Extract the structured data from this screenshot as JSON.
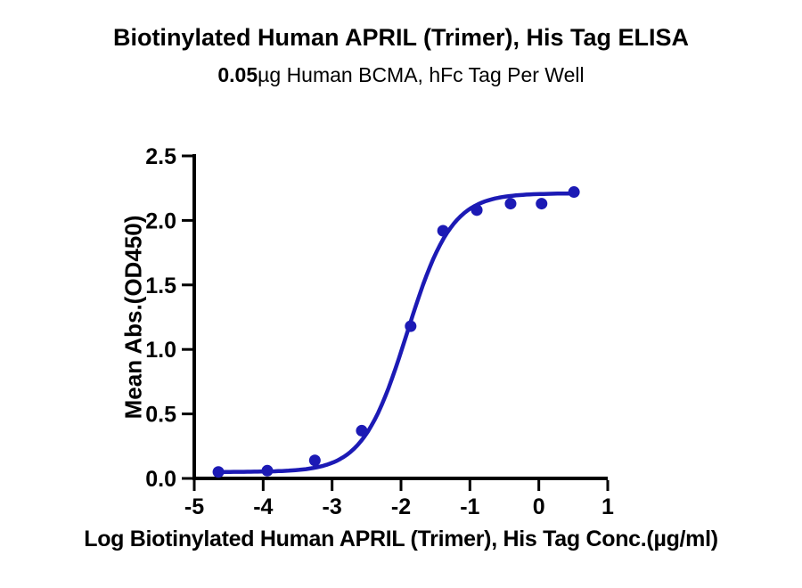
{
  "header": {
    "title": "Biotinylated Human APRIL (Trimer), His Tag ELISA",
    "subtitle_bold": "0.05",
    "subtitle_rest": "µg Human BCMA, hFc Tag Per Well"
  },
  "chart_data": {
    "type": "scatter",
    "title": "Biotinylated Human APRIL (Trimer), His Tag ELISA",
    "subtitle": "0.05µg Human BCMA, hFc Tag Per Well",
    "xlabel": "Log Biotinylated Human APRIL (Trimer), His Tag Conc.(µg/ml)",
    "ylabel": "Mean Abs.(OD450)",
    "xlim": [
      -5,
      1
    ],
    "ylim": [
      0,
      2.5
    ],
    "x_ticks": [
      -5,
      -4,
      -3,
      -2,
      -1,
      0,
      1
    ],
    "x_tick_labels": [
      "-5",
      "-4",
      "-3",
      "-2",
      "-1",
      "0",
      "1"
    ],
    "y_ticks": [
      0,
      0.5,
      1.0,
      1.5,
      2.0,
      2.5
    ],
    "y_tick_labels": [
      "0.0",
      "0.5",
      "1.0",
      "1.5",
      "2.0",
      "2.5"
    ],
    "grid": false,
    "legend": "none",
    "points": [
      {
        "log_conc": -4.65,
        "od450": 0.05
      },
      {
        "log_conc": -3.94,
        "od450": 0.06
      },
      {
        "log_conc": -3.25,
        "od450": 0.14
      },
      {
        "log_conc": -2.57,
        "od450": 0.37
      },
      {
        "log_conc": -1.86,
        "od450": 1.18
      },
      {
        "log_conc": -1.39,
        "od450": 1.92
      },
      {
        "log_conc": -0.9,
        "od450": 2.08
      },
      {
        "log_conc": -0.41,
        "od450": 2.13
      },
      {
        "log_conc": 0.04,
        "od450": 2.13
      },
      {
        "log_conc": 0.51,
        "od450": 2.22
      }
    ],
    "fit_curve": {
      "model": "4PL",
      "bottom": 0.05,
      "top": 2.21,
      "log_ec50": -1.91,
      "hill": 1.35,
      "x_start": -4.68,
      "x_end": 0.51
    },
    "colors": {
      "curve": "#1c1ab5",
      "points": "#1c1ab5",
      "axis": "#000000",
      "text": "#000000"
    }
  }
}
